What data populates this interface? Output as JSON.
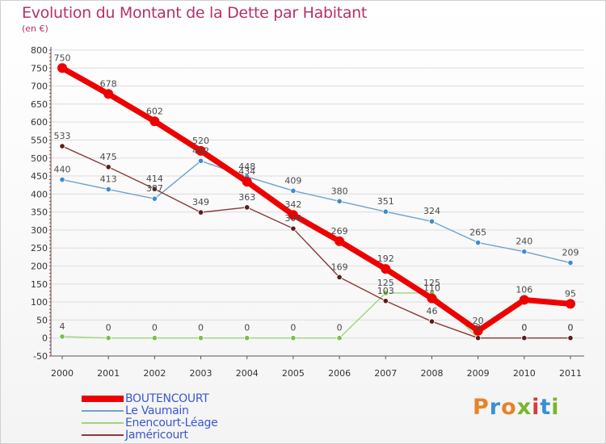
{
  "title": "Evolution du Montant de la Dette par Habitant",
  "subtitle": "(en €)",
  "logo": "Proxiti",
  "colors": {
    "title": "#b5306c",
    "legend_text": "#3a57d1",
    "grid": "#dddddd",
    "logo": [
      "#e8822a",
      "#3a8fd6",
      "#e8822a",
      "#7ab52b",
      "#d73d3d",
      "#3a8fd6",
      "#7ab52b"
    ]
  },
  "chart_data": {
    "type": "line",
    "title": "Evolution du Montant de la Dette par Habitant",
    "ylabel": "(en €)",
    "xlabel": "",
    "x": [
      "2000",
      "2001",
      "2002",
      "2003",
      "2004",
      "2005",
      "2006",
      "2007",
      "2008",
      "2009",
      "2010",
      "2011"
    ],
    "ylim": [
      -50,
      800
    ],
    "yticks": [
      800,
      750,
      700,
      650,
      600,
      550,
      500,
      450,
      400,
      350,
      300,
      250,
      200,
      150,
      100,
      50,
      0,
      -50
    ],
    "grid": true,
    "legend_position": "bottom-left",
    "series": [
      {
        "name": "Le Vaumain",
        "color": "#6fa3cf",
        "marker": "#3c8bd0",
        "values": [
          440,
          413,
          387,
          492,
          448,
          409,
          380,
          351,
          324,
          265,
          240,
          209
        ],
        "labels": [
          "440",
          "413",
          "387",
          "492",
          "448",
          "409",
          "380",
          "351",
          "324",
          "265",
          "240",
          "209"
        ]
      },
      {
        "name": "Enencourt-Léage",
        "color": "#9ed67a",
        "marker": "#78c14c",
        "values": [
          4,
          0,
          0,
          0,
          0,
          0,
          0,
          125,
          125,
          0,
          0,
          0
        ],
        "labels": [
          "4",
          "0",
          "0",
          "0",
          "0",
          "0",
          "0",
          "125",
          "125",
          "0",
          "0",
          "0"
        ]
      },
      {
        "name": "Jaméricourt",
        "color": "#8b3a3a",
        "marker": "#5e1a1a",
        "values": [
          533,
          475,
          414,
          349,
          363,
          304,
          169,
          103,
          46,
          0,
          0,
          0
        ],
        "labels": [
          "533",
          "475",
          "414",
          "349",
          "363",
          "304",
          "169",
          "103",
          "46",
          "0",
          "0",
          "0"
        ]
      },
      {
        "name": "BOUTENCOURT",
        "color": "#ee0000",
        "marker": "#ee0000",
        "values": [
          750,
          678,
          602,
          520,
          434,
          342,
          269,
          192,
          110,
          20,
          106,
          95
        ],
        "labels": [
          "750",
          "678",
          "602",
          "520",
          "434",
          "342",
          "269",
          "192",
          "110",
          "20",
          "106",
          "95"
        ]
      }
    ]
  },
  "legend": [
    {
      "name": "BOUTENCOURT",
      "color": "#ee0000",
      "weight": "thick"
    },
    {
      "name": "Le Vaumain",
      "color": "#6fa3cf",
      "weight": "thin"
    },
    {
      "name": "Enencourt-Léage",
      "color": "#9ed67a",
      "weight": "thin"
    },
    {
      "name": "Jaméricourt",
      "color": "#8b3a3a",
      "weight": "thin"
    }
  ]
}
